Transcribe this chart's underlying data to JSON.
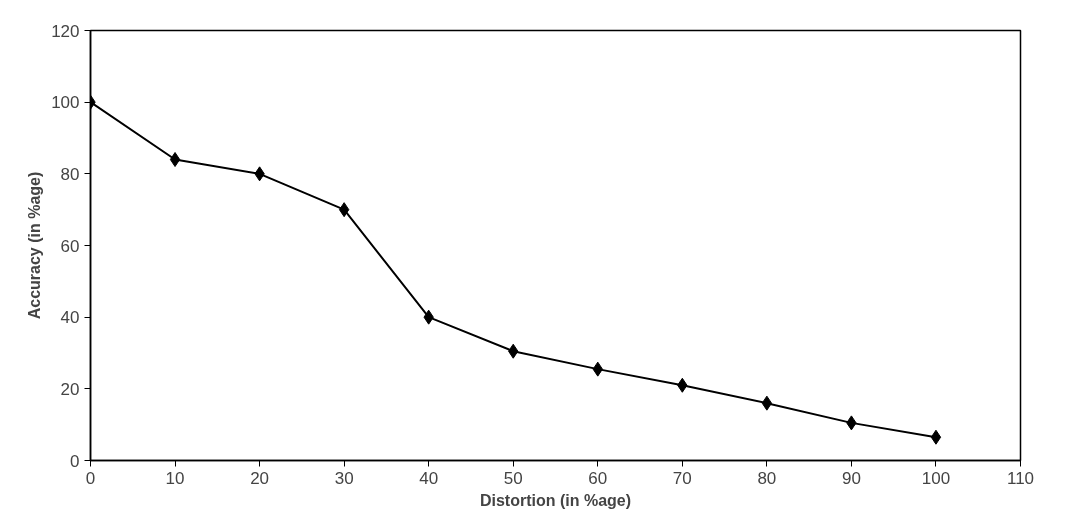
{
  "chart_data": {
    "type": "line",
    "xlabel": "Distortion (in %age)",
    "ylabel": "Accuracy (in %age)",
    "x": [
      0,
      10,
      20,
      30,
      40,
      50,
      60,
      70,
      80,
      90,
      100
    ],
    "series": [
      {
        "color": "#000000",
        "values": [
          100,
          84,
          80,
          70,
          40,
          30.5,
          25.5,
          21,
          16,
          10.5,
          6.5
        ]
      }
    ],
    "xlim": [
      0,
      110
    ],
    "xticks": [
      0,
      10,
      20,
      30,
      40,
      50,
      60,
      70,
      80,
      90,
      100,
      110
    ],
    "ylim": [
      0,
      120
    ],
    "yticks": [
      0,
      20,
      40,
      60,
      80,
      100,
      120
    ],
    "grid": false,
    "marker": "diamond",
    "line_style": "solid"
  }
}
